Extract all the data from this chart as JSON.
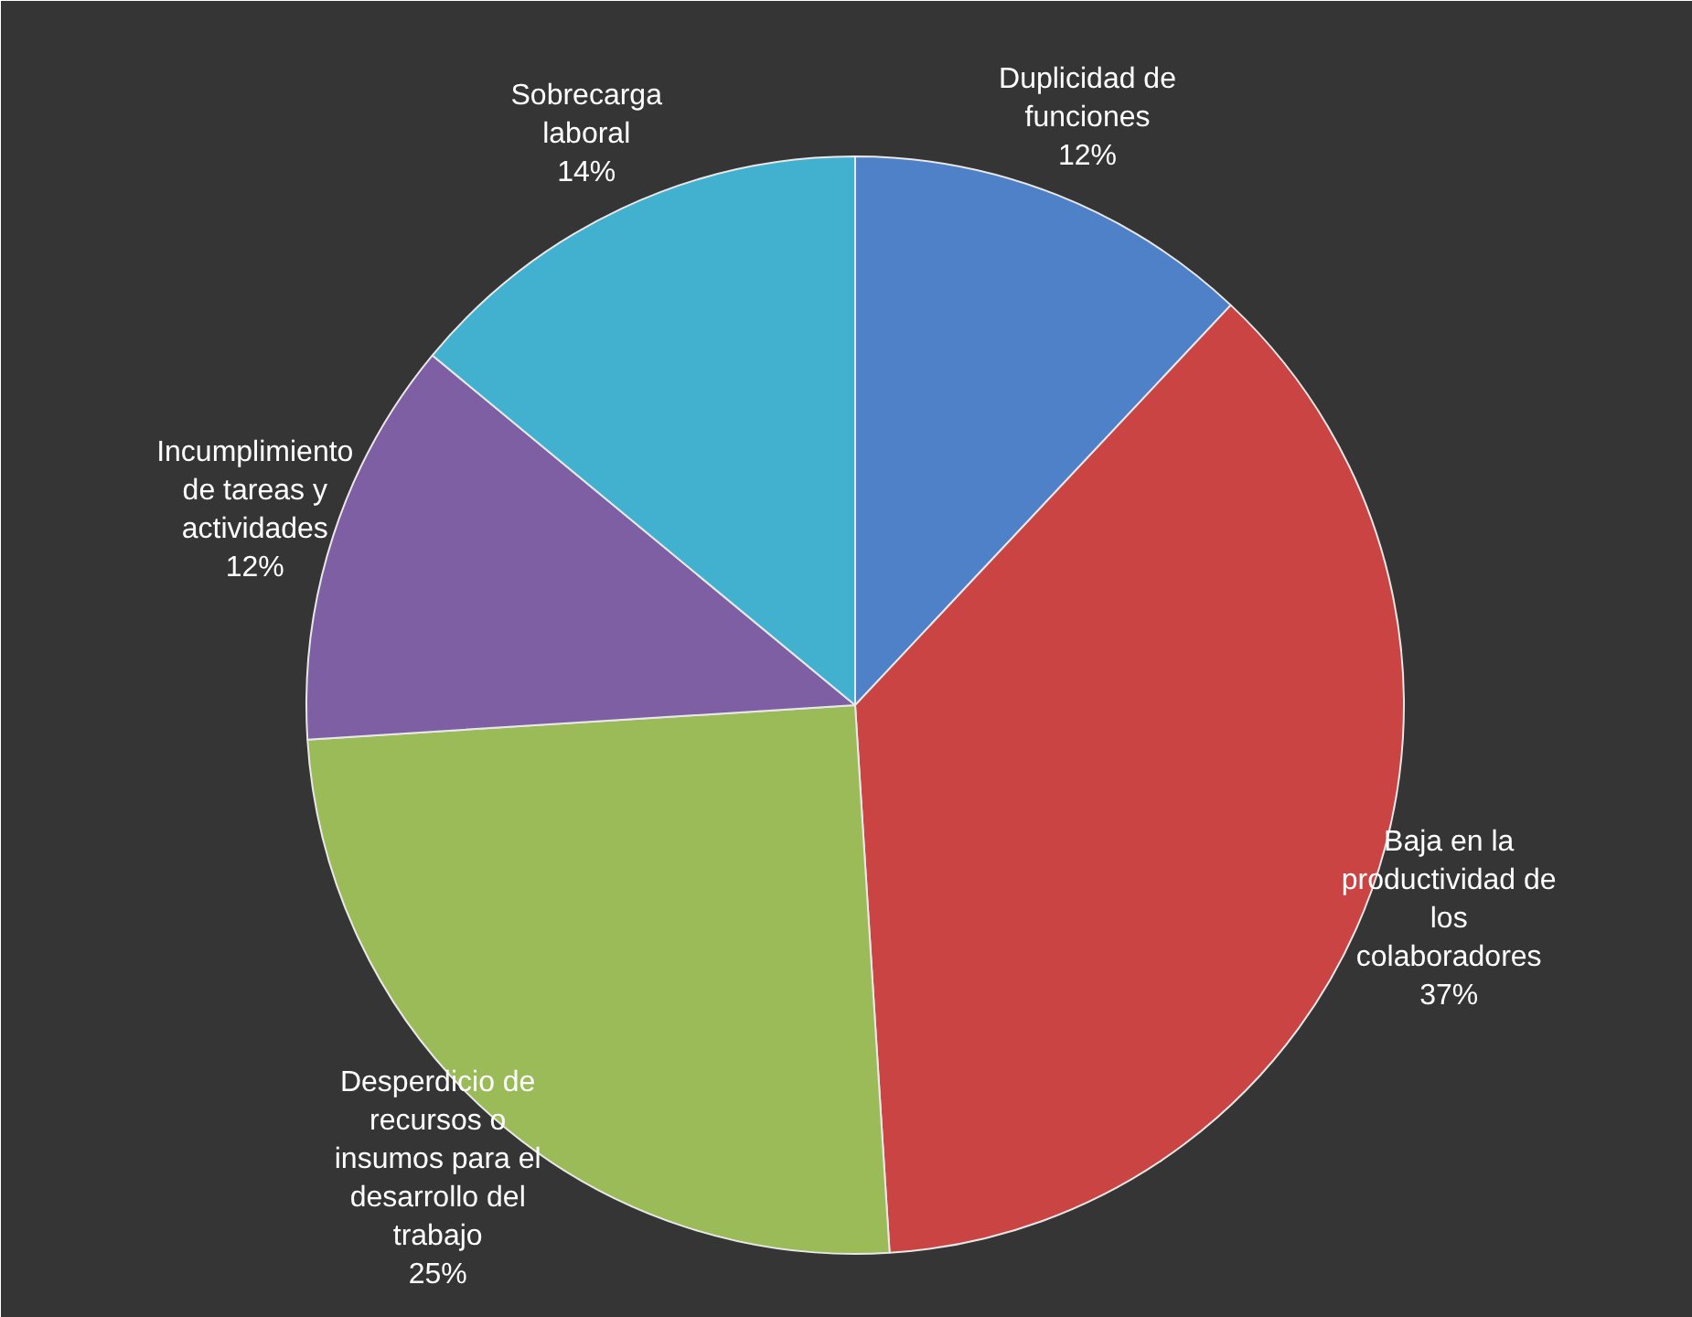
{
  "chart_data": {
    "type": "pie",
    "categories": [
      "Duplicidad de funciones",
      "Baja en la productividad de los colaboradores",
      "Desperdicio de recursos o insumos para el desarrollo del trabajo",
      "Incumplimiento de tareas y actividades",
      "Sobrecarga laboral"
    ],
    "values": [
      12,
      37,
      25,
      12,
      14
    ],
    "colors": [
      "#4f81c9",
      "#c94442",
      "#9bbb59",
      "#7f5fa3",
      "#42b0cf"
    ],
    "value_labels": [
      "12%",
      "37%",
      "25%",
      "12%",
      "14%"
    ]
  }
}
